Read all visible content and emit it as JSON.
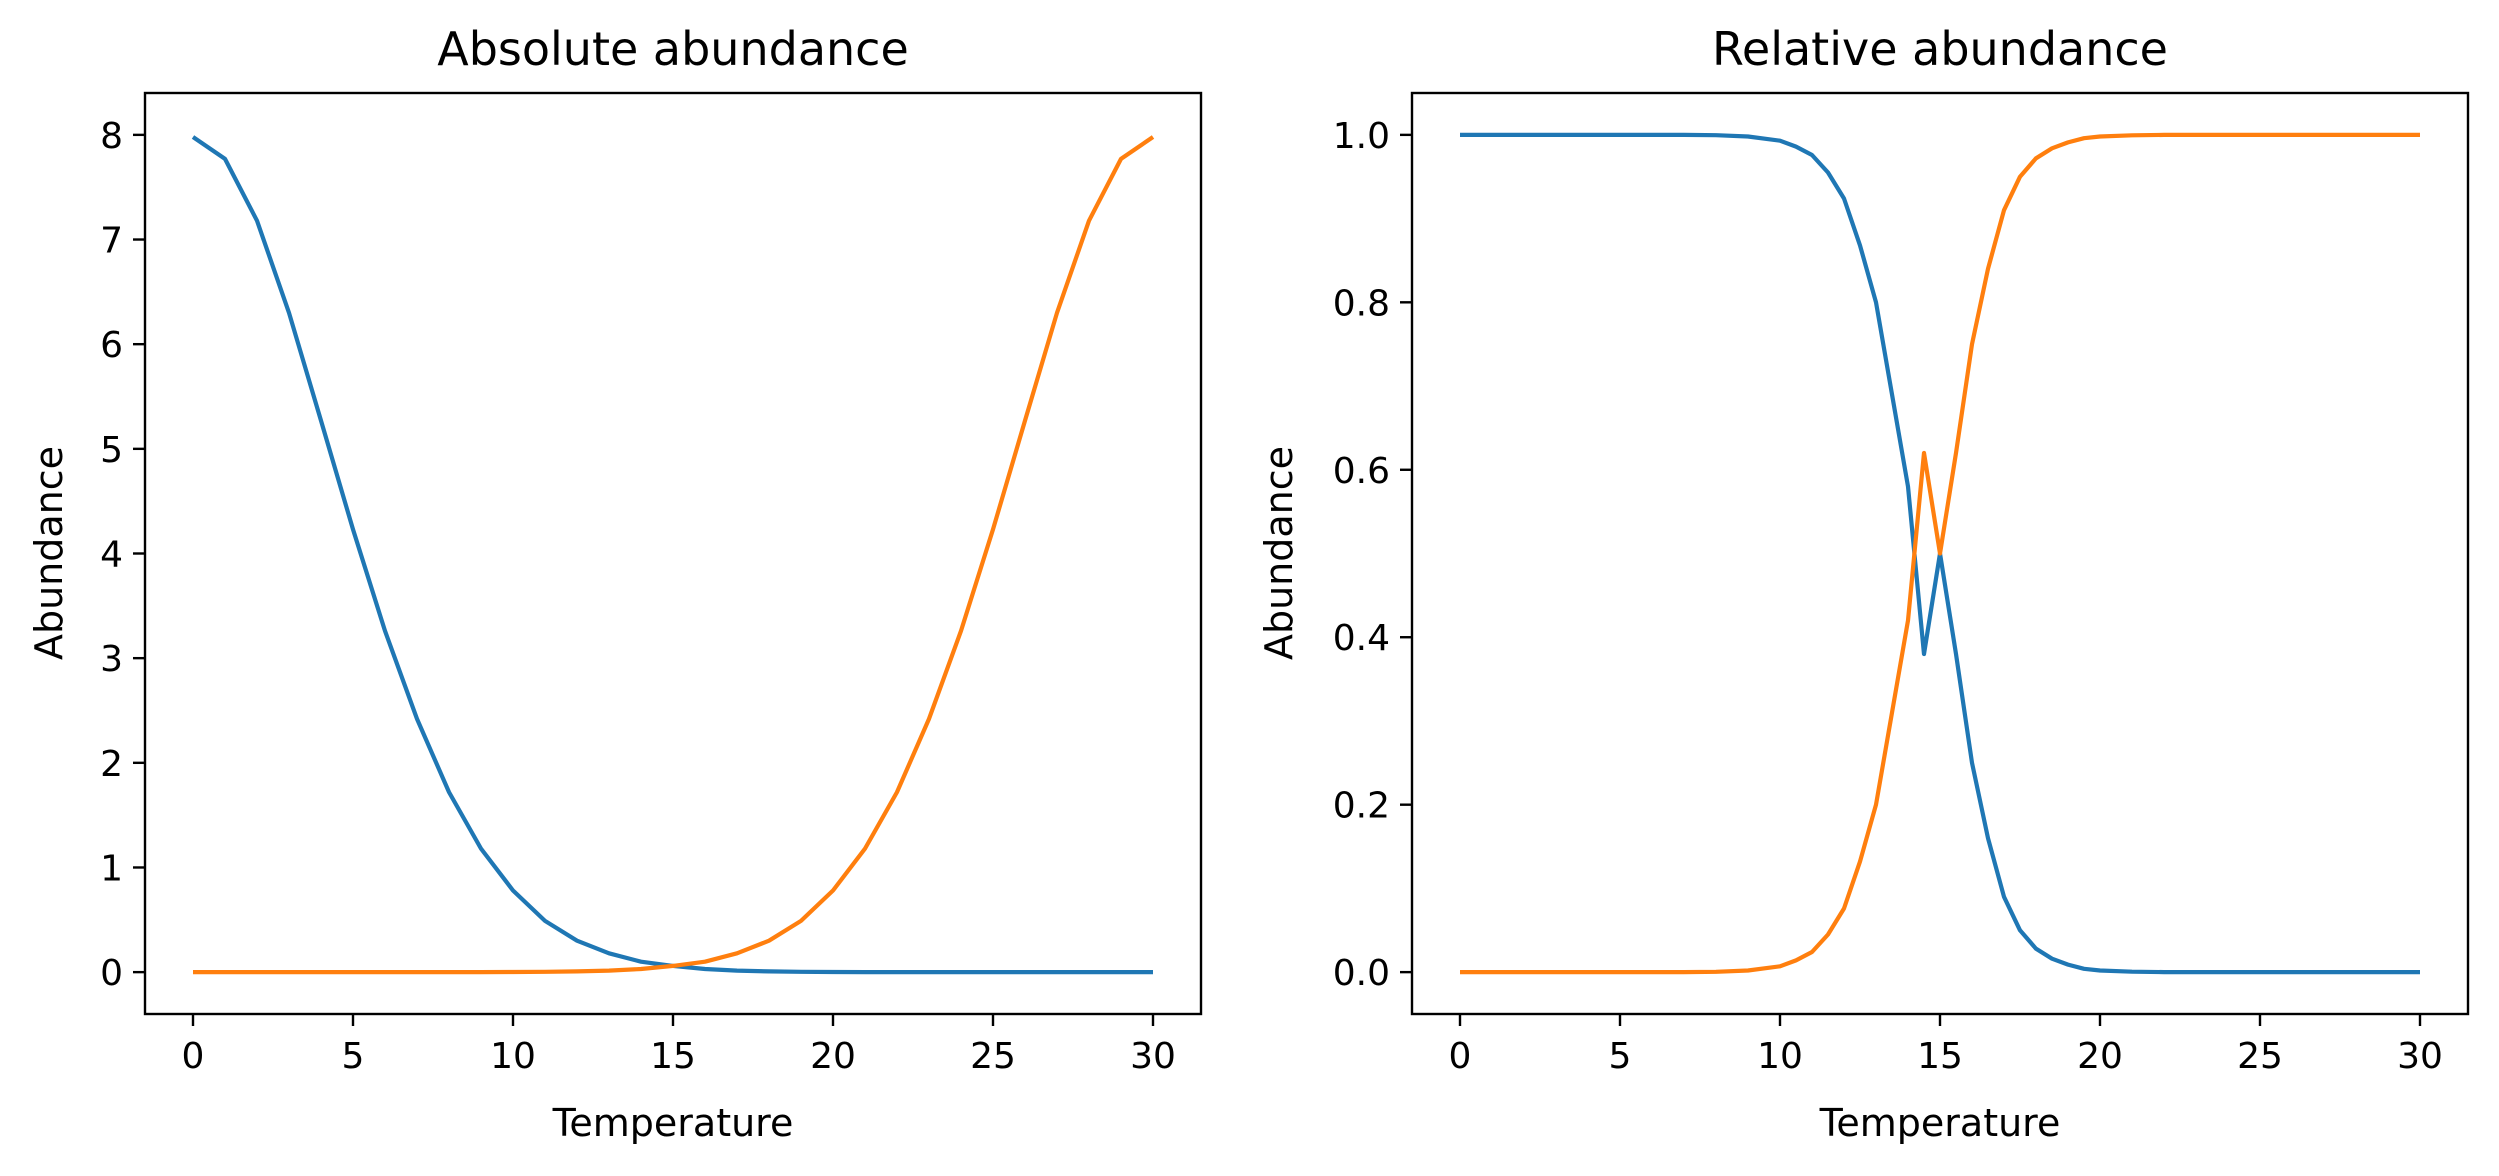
{
  "chart_data": [
    {
      "type": "line",
      "title": "Absolute abundance",
      "xlabel": "Temperature",
      "ylabel": "Abundance",
      "xlim": [
        -1.5,
        31.5
      ],
      "ylim": [
        -0.4,
        8.4
      ],
      "xticks": [
        0,
        5,
        10,
        15,
        20,
        25,
        30
      ],
      "xtick_labels": [
        "0",
        "5",
        "10",
        "15",
        "20",
        "25",
        "30"
      ],
      "yticks": [
        0,
        1,
        2,
        3,
        4,
        5,
        6,
        7,
        8
      ],
      "ytick_labels": [
        "0",
        "1",
        "2",
        "3",
        "4",
        "5",
        "6",
        "7",
        "8"
      ],
      "grid": false,
      "x": [
        0,
        1,
        2,
        3,
        4,
        5,
        6,
        7,
        8,
        9,
        10,
        11,
        12,
        13,
        14,
        15,
        16,
        17,
        18,
        19,
        20,
        21,
        22,
        23,
        24,
        25,
        26,
        27,
        28,
        29,
        30
      ],
      "series": [
        {
          "color": "#1f77b4",
          "values": [
            7.98,
            7.77,
            7.18,
            6.3,
            5.27,
            4.23,
            3.26,
            2.42,
            1.72,
            1.18,
            0.78,
            0.49,
            0.3,
            0.18,
            0.1,
            0.06,
            0.03,
            0.015,
            0.007,
            0.003,
            0.001,
            0.0005,
            0.0002,
            0.0001,
            0,
            0,
            0,
            0,
            0,
            0,
            0
          ]
        },
        {
          "color": "#ff7f0e",
          "values": [
            0,
            0,
            0,
            0,
            0,
            0,
            0,
            0.0001,
            0.0002,
            0.0005,
            0.001,
            0.003,
            0.007,
            0.015,
            0.03,
            0.06,
            0.1,
            0.18,
            0.3,
            0.49,
            0.78,
            1.18,
            1.72,
            2.42,
            3.26,
            4.23,
            5.27,
            6.3,
            7.18,
            7.77,
            7.98
          ]
        }
      ]
    },
    {
      "type": "line",
      "title": "Relative abundance",
      "xlabel": "Temperature",
      "ylabel": "Abundance",
      "xlim": [
        -1.5,
        31.5
      ],
      "ylim": [
        -0.05,
        1.05
      ],
      "xticks": [
        0,
        5,
        10,
        15,
        20,
        25,
        30
      ],
      "xtick_labels": [
        "0",
        "5",
        "10",
        "15",
        "20",
        "25",
        "30"
      ],
      "yticks": [
        0,
        0.2,
        0.4,
        0.6,
        0.8,
        1.0
      ],
      "ytick_labels": [
        "0.0",
        "0.2",
        "0.4",
        "0.6",
        "0.8",
        "1.0"
      ],
      "grid": false,
      "x": [
        0,
        1,
        2,
        3,
        4,
        5,
        6,
        7,
        8,
        9,
        10,
        10.5,
        11,
        11.5,
        12,
        12.5,
        13,
        13.5,
        14,
        14.5,
        15,
        15.5,
        16,
        16.5,
        17,
        17.5,
        18,
        18.5,
        19,
        19.5,
        20,
        21,
        22,
        23,
        24,
        25,
        26,
        27,
        28,
        29,
        30
      ],
      "series": [
        {
          "color": "#1f77b4",
          "values": [
            1,
            1,
            1,
            1,
            1,
            1,
            1,
            0.9999,
            0.9996,
            0.998,
            0.993,
            0.986,
            0.976,
            0.955,
            0.924,
            0.868,
            0.8,
            0.69,
            0.58,
            0.38,
            0.5,
            0.38,
            0.25,
            0.16,
            0.09,
            0.05,
            0.028,
            0.016,
            0.009,
            0.004,
            0.002,
            0.0005,
            0.0001,
            0,
            0,
            0,
            0,
            0,
            0,
            0,
            0
          ]
        },
        {
          "color": "#ff7f0e",
          "values": [
            0,
            0,
            0,
            0,
            0,
            0,
            0,
            0.0001,
            0.0004,
            0.002,
            0.007,
            0.014,
            0.024,
            0.045,
            0.076,
            0.132,
            0.2,
            0.31,
            0.42,
            0.62,
            0.5,
            0.62,
            0.75,
            0.84,
            0.91,
            0.95,
            0.972,
            0.984,
            0.991,
            0.996,
            0.998,
            0.9995,
            0.9999,
            1,
            1,
            1,
            1,
            1,
            1,
            1,
            1
          ]
        }
      ]
    }
  ]
}
